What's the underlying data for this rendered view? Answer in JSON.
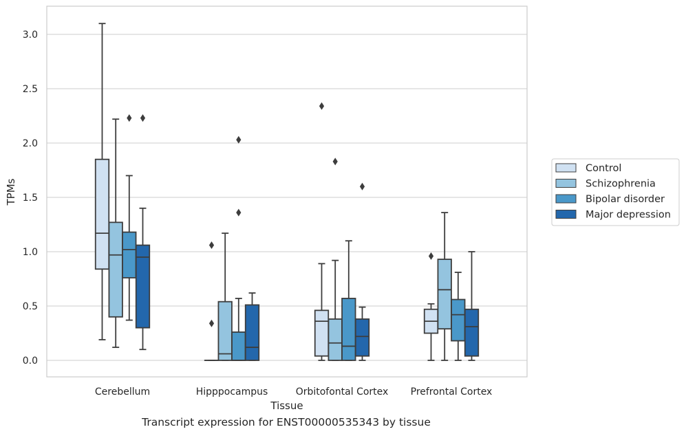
{
  "caption": "Transcript expression for ENST00000535343 by tissue",
  "chart_data": {
    "type": "box",
    "xlabel": "Tissue",
    "ylabel": "TPMs",
    "ylim": [
      -0.15,
      3.27
    ],
    "yticks": [
      0.0,
      0.5,
      1.0,
      1.5,
      2.0,
      2.5,
      3.0
    ],
    "ytick_labels": [
      "0.0",
      "0.5",
      "1.0",
      "1.5",
      "2.0",
      "2.5",
      "3.0"
    ],
    "grid": "horizontal",
    "legend_position": "right",
    "categories": [
      "Cerebellum",
      "Hipppocampus",
      "Orbitofontal Cortex",
      "Prefrontal Cortex"
    ],
    "series": [
      {
        "name": "Control",
        "color": "#d0e1f2",
        "boxes": [
          {
            "whislo": 0.19,
            "q1": 0.84,
            "med": 1.17,
            "q3": 1.85,
            "whishi": 3.1,
            "fliers": []
          },
          {
            "whislo": 0.0,
            "q1": 0.0,
            "med": 0.0,
            "q3": 0.0,
            "whishi": 0.0,
            "fliers": [
              0.34,
              1.06
            ]
          },
          {
            "whislo": 0.0,
            "q1": 0.04,
            "med": 0.36,
            "q3": 0.46,
            "whishi": 0.89,
            "fliers": [
              2.34
            ]
          },
          {
            "whislo": 0.0,
            "q1": 0.25,
            "med": 0.36,
            "q3": 0.47,
            "whishi": 0.52,
            "fliers": [
              0.96
            ]
          }
        ]
      },
      {
        "name": "Schizophrenia",
        "color": "#94c4df",
        "boxes": [
          {
            "whislo": 0.12,
            "q1": 0.4,
            "med": 0.97,
            "q3": 1.27,
            "whishi": 2.22,
            "fliers": []
          },
          {
            "whislo": 0.0,
            "q1": 0.0,
            "med": 0.06,
            "q3": 0.54,
            "whishi": 1.17,
            "fliers": []
          },
          {
            "whislo": 0.0,
            "q1": 0.0,
            "med": 0.16,
            "q3": 0.38,
            "whishi": 0.92,
            "fliers": [
              1.83
            ]
          },
          {
            "whislo": 0.0,
            "q1": 0.29,
            "med": 0.65,
            "q3": 0.93,
            "whishi": 1.36,
            "fliers": []
          }
        ]
      },
      {
        "name": "Bipolar disorder",
        "color": "#4a98c9",
        "boxes": [
          {
            "whislo": 0.37,
            "q1": 0.76,
            "med": 1.02,
            "q3": 1.18,
            "whishi": 1.7,
            "fliers": [
              2.23
            ]
          },
          {
            "whislo": 0.0,
            "q1": 0.0,
            "med": 0.0,
            "q3": 0.26,
            "whishi": 0.57,
            "fliers": [
              1.36,
              2.03
            ]
          },
          {
            "whislo": 0.0,
            "q1": 0.0,
            "med": 0.13,
            "q3": 0.57,
            "whishi": 1.1,
            "fliers": []
          },
          {
            "whislo": 0.0,
            "q1": 0.18,
            "med": 0.42,
            "q3": 0.56,
            "whishi": 0.81,
            "fliers": []
          }
        ]
      },
      {
        "name": "Major depression",
        "color": "#2367ac",
        "boxes": [
          {
            "whislo": 0.1,
            "q1": 0.3,
            "med": 0.95,
            "q3": 1.06,
            "whishi": 1.4,
            "fliers": [
              2.23
            ]
          },
          {
            "whislo": 0.0,
            "q1": 0.0,
            "med": 0.12,
            "q3": 0.51,
            "whishi": 0.62,
            "fliers": []
          },
          {
            "whislo": 0.0,
            "q1": 0.04,
            "med": 0.22,
            "q3": 0.38,
            "whishi": 0.49,
            "fliers": [
              1.6
            ]
          },
          {
            "whislo": 0.0,
            "q1": 0.04,
            "med": 0.31,
            "q3": 0.47,
            "whishi": 1.0,
            "fliers": []
          }
        ]
      }
    ]
  }
}
